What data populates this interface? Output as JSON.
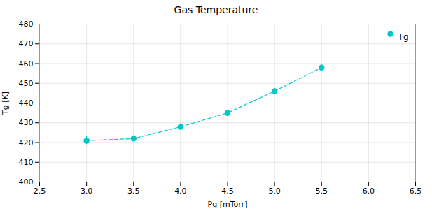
{
  "chart_data": {
    "type": "line",
    "title": "Gas Temperature",
    "xlabel": "Pg [mTorr]",
    "ylabel": "Tg [K]",
    "x": [
      3.0,
      3.5,
      4.0,
      4.5,
      5.0,
      5.5
    ],
    "series": [
      {
        "name": "Tg",
        "color": "#00C8C8",
        "marker": "circle",
        "line_style": "dashed",
        "values": [
          421,
          422,
          428,
          435,
          446,
          458
        ],
        "yerr": [
          2.0,
          1.5,
          1.5,
          1.5,
          1.5,
          1.5
        ]
      }
    ],
    "xlim": [
      2.5,
      6.5
    ],
    "ylim": [
      400,
      480
    ],
    "xticks": [
      2.5,
      {
        "value": 3,
        "label": "3.0"
      },
      3.5,
      {
        "value": 4,
        "label": "4.0"
      },
      4.5,
      {
        "value": 5,
        "label": "5.0"
      },
      5.5,
      {
        "value": 6,
        "label": "6.0"
      },
      6.5
    ],
    "yticks": [
      400,
      410,
      420,
      430,
      440,
      450,
      460,
      470,
      480
    ],
    "grid": true,
    "legend": "upper right"
  }
}
